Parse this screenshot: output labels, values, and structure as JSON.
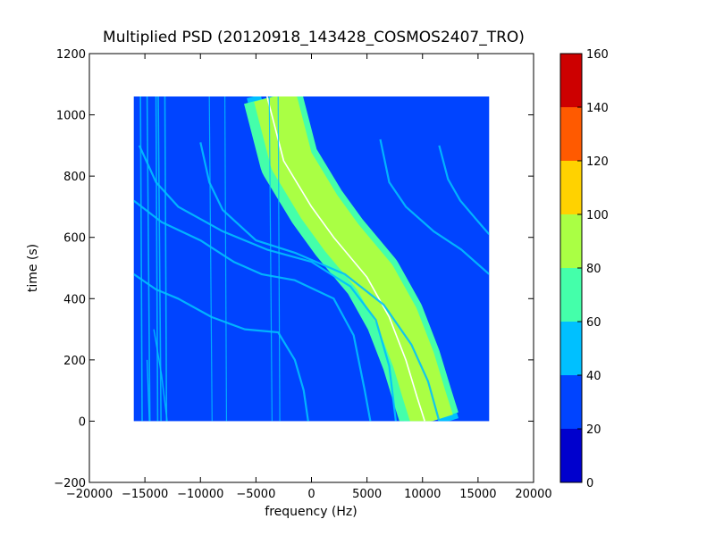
{
  "chart_data": {
    "type": "heatmap",
    "title": "Multiplied PSD (20120918_143428_COSMOS2407_TRO)",
    "xlabel": "frequency (Hz)",
    "ylabel": "time (s)",
    "xlim": [
      -20000,
      20000
    ],
    "ylim": [
      -200,
      1200
    ],
    "xticks": [
      -20000,
      -15000,
      -10000,
      -5000,
      0,
      5000,
      10000,
      15000,
      20000
    ],
    "yticks": [
      -200,
      0,
      200,
      400,
      600,
      800,
      1000,
      1200
    ],
    "data_extent": {
      "x": [
        -16000,
        16000
      ],
      "y": [
        0,
        1060
      ]
    },
    "grid": false,
    "colorbar": {
      "range": [
        0,
        160
      ],
      "ticks": [
        0,
        20,
        40,
        60,
        80,
        100,
        120,
        140,
        160
      ],
      "levels": [
        {
          "from": 0,
          "to": 20,
          "color": "#0000cd"
        },
        {
          "from": 20,
          "to": 40,
          "color": "#0044ff"
        },
        {
          "from": 40,
          "to": 60,
          "color": "#00c0ff"
        },
        {
          "from": 60,
          "to": 80,
          "color": "#44ffaa"
        },
        {
          "from": 80,
          "to": 100,
          "color": "#aaff44"
        },
        {
          "from": 100,
          "to": 120,
          "color": "#ffd200"
        },
        {
          "from": 120,
          "to": 140,
          "color": "#ff5a00"
        },
        {
          "from": 140,
          "to": 160,
          "color": "#cd0000"
        }
      ]
    },
    "background_level_color": "#0044ff",
    "main_trace": {
      "description_points": [
        [
          -4000,
          1060
        ],
        [
          -2500,
          850
        ],
        [
          0,
          700
        ],
        [
          2000,
          600
        ],
        [
          5000,
          470
        ],
        [
          7000,
          340
        ],
        [
          8500,
          200
        ],
        [
          9500,
          80
        ],
        [
          10200,
          0
        ]
      ]
    },
    "colors": {
      "cyan": "#00c0ff",
      "green": "#44ffaa",
      "yellow_green": "#aaff44",
      "white": "#ffffff"
    }
  }
}
